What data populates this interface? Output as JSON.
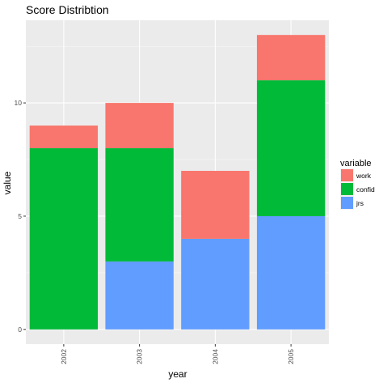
{
  "chart_data": {
    "type": "bar",
    "stacked": true,
    "title": "Score Distribtion",
    "xlabel": "year",
    "ylabel": "value",
    "categories": [
      "2002",
      "2003",
      "2004",
      "2005"
    ],
    "series": [
      {
        "name": "jrs",
        "color": "#619cff",
        "values": [
          0,
          3,
          4,
          5
        ]
      },
      {
        "name": "confid",
        "color": "#00ba38",
        "values": [
          8,
          5,
          0,
          6
        ]
      },
      {
        "name": "work",
        "color": "#f8766d",
        "values": [
          1,
          2,
          3,
          2
        ]
      }
    ],
    "ylim": [
      -0.65,
      13.65
    ],
    "yticks": [
      0,
      5,
      10
    ],
    "grid": true,
    "legend": {
      "title": "variable",
      "placement": "right",
      "order": [
        "work",
        "confid",
        "jrs"
      ]
    }
  }
}
